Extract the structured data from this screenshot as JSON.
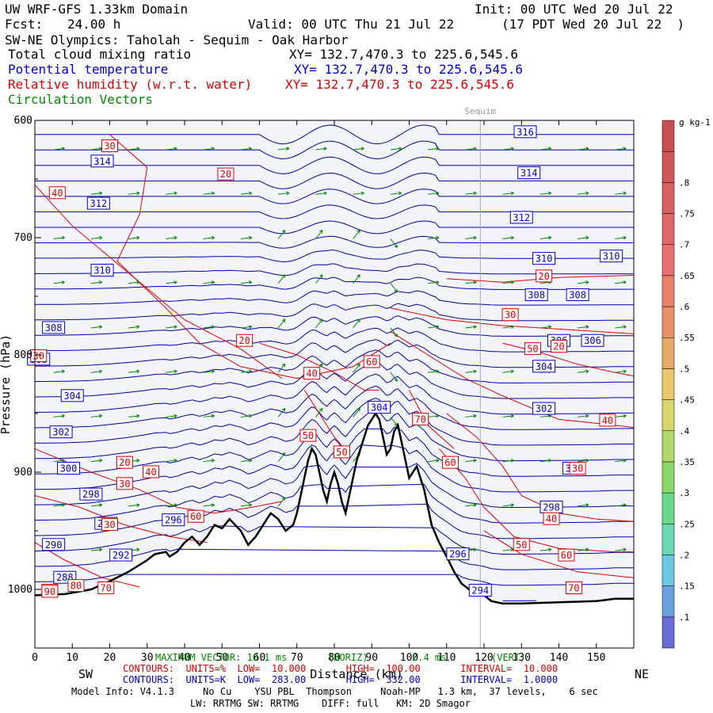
{
  "header": {
    "model_title": "UW WRF-GFS 1.33km Domain",
    "init": "Init: 00 UTC Wed 20 Jul 22",
    "fcst_label": "Fcst:",
    "fcst_value": "24.00 h",
    "valid": "Valid: 00 UTC Thu 21 Jul 22",
    "valid_local": "(17 PDT Wed 20 Jul 22  )",
    "cross_section": "SW-NE Olympics: Taholah - Sequim - Oak Harbor",
    "fields": [
      {
        "name": "Total cloud mixing ratio",
        "xy": "XY= 132.7,470.3 to 225.6,545.6",
        "color": "#000000"
      },
      {
        "name": "Potential temperature",
        "xy": "XY= 132.7,470.3 to 225.6,545.6",
        "color": "#0000cc"
      },
      {
        "name": "Relative humidity (w.r.t. water)",
        "xy": "XY= 132.7,470.3 to 225.6,545.6",
        "color": "#dd0000"
      },
      {
        "name": "Circulation Vectors",
        "xy": "",
        "color": "#008800"
      }
    ]
  },
  "chart_data": {
    "type": "cross-section",
    "xlabel": "Distance (km)",
    "ylabel": "Pressure (hPa)",
    "xlim": [
      0,
      160
    ],
    "ylim": [
      1050,
      600
    ],
    "x_ticks": [
      0,
      10,
      20,
      30,
      40,
      50,
      60,
      70,
      80,
      90,
      100,
      110,
      120,
      130,
      140,
      150
    ],
    "y_ticks": [
      600,
      700,
      800,
      900,
      1000
    ],
    "y_tick_labels": [
      "600",
      "700",
      "800",
      "900",
      "1000"
    ],
    "left_label": "SW",
    "right_label": "NE",
    "location_marker": {
      "name": "Sequim",
      "x": 119
    },
    "colorbar": {
      "units": "g kg-1",
      "levels": [
        0.05,
        0.1,
        0.15,
        0.2,
        0.25,
        0.3,
        0.35,
        0.4,
        0.45,
        0.5,
        0.55,
        0.6,
        0.65,
        0.7,
        0.75,
        0.8,
        0.85
      ],
      "tick_labels": [
        ".1",
        ".15",
        ".2",
        ".25",
        ".3",
        ".35",
        ".4",
        ".45",
        ".5",
        ".55",
        ".6",
        ".65",
        ".7",
        ".75",
        ".8"
      ]
    },
    "terrain": [
      [
        0,
        1005
      ],
      [
        8,
        1004
      ],
      [
        15,
        1000
      ],
      [
        20,
        993
      ],
      [
        25,
        985
      ],
      [
        30,
        975
      ],
      [
        32,
        970
      ],
      [
        35,
        968
      ],
      [
        36,
        972
      ],
      [
        38,
        968
      ],
      [
        40,
        960
      ],
      [
        42,
        955
      ],
      [
        44,
        962
      ],
      [
        46,
        955
      ],
      [
        48,
        945
      ],
      [
        50,
        948
      ],
      [
        52,
        940
      ],
      [
        55,
        950
      ],
      [
        57,
        962
      ],
      [
        59,
        955
      ],
      [
        61,
        945
      ],
      [
        63,
        935
      ],
      [
        65,
        940
      ],
      [
        67,
        950
      ],
      [
        69,
        945
      ],
      [
        70,
        935
      ],
      [
        71,
        920
      ],
      [
        72,
        905
      ],
      [
        73,
        890
      ],
      [
        74,
        880
      ],
      [
        75,
        885
      ],
      [
        76,
        900
      ],
      [
        77,
        915
      ],
      [
        78,
        925
      ],
      [
        79,
        910
      ],
      [
        80,
        900
      ],
      [
        81,
        910
      ],
      [
        82,
        925
      ],
      [
        83,
        935
      ],
      [
        84,
        920
      ],
      [
        85,
        905
      ],
      [
        86,
        890
      ],
      [
        87,
        880
      ],
      [
        88,
        870
      ],
      [
        89,
        860
      ],
      [
        90,
        855
      ],
      [
        91,
        850
      ],
      [
        92,
        855
      ],
      [
        93,
        870
      ],
      [
        94,
        885
      ],
      [
        95,
        880
      ],
      [
        96,
        865
      ],
      [
        97,
        860
      ],
      [
        98,
        875
      ],
      [
        99,
        890
      ],
      [
        100,
        905
      ],
      [
        101,
        900
      ],
      [
        102,
        895
      ],
      [
        103,
        905
      ],
      [
        104,
        915
      ],
      [
        105,
        930
      ],
      [
        106,
        945
      ],
      [
        108,
        960
      ],
      [
        110,
        972
      ],
      [
        112,
        985
      ],
      [
        114,
        995
      ],
      [
        116,
        1000
      ],
      [
        118,
        1002
      ],
      [
        120,
        1005
      ],
      [
        122,
        1010
      ],
      [
        125,
        1012
      ],
      [
        130,
        1012
      ],
      [
        140,
        1011
      ],
      [
        150,
        1010
      ],
      [
        155,
        1008
      ],
      [
        160,
        1008
      ]
    ],
    "theta_contours": {
      "units": "K",
      "low": "283.00",
      "high": "332.00",
      "interval": "1.0000",
      "labels": [
        {
          "text": "316",
          "x": 131,
          "p": 610
        },
        {
          "text": "314",
          "x": 18,
          "p": 635
        },
        {
          "text": "314",
          "x": 132,
          "p": 645
        },
        {
          "text": "312",
          "x": 17,
          "p": 671
        },
        {
          "text": "312",
          "x": 130,
          "p": 683
        },
        {
          "text": "310",
          "x": 18,
          "p": 728
        },
        {
          "text": "310",
          "x": 136,
          "p": 718
        },
        {
          "text": "310",
          "x": 154,
          "p": 716
        },
        {
          "text": "308",
          "x": 5,
          "p": 777
        },
        {
          "text": "308",
          "x": 134,
          "p": 749
        },
        {
          "text": "308",
          "x": 145,
          "p": 749
        },
        {
          "text": "306",
          "x": 1,
          "p": 804
        },
        {
          "text": "306",
          "x": 140,
          "p": 788
        },
        {
          "text": "306",
          "x": 149,
          "p": 788
        },
        {
          "text": "304",
          "x": 10,
          "p": 835
        },
        {
          "text": "304",
          "x": 136,
          "p": 810
        },
        {
          "text": "304",
          "x": 92,
          "p": 845
        },
        {
          "text": "302",
          "x": 7,
          "p": 866
        },
        {
          "text": "302",
          "x": 136,
          "p": 846
        },
        {
          "text": "300",
          "x": 9,
          "p": 897
        },
        {
          "text": "300",
          "x": 144,
          "p": 897
        },
        {
          "text": "298",
          "x": 15,
          "p": 919
        },
        {
          "text": "298",
          "x": 138,
          "p": 930
        },
        {
          "text": "296",
          "x": 37,
          "p": 941
        },
        {
          "text": "296",
          "x": 113,
          "p": 970
        },
        {
          "text": "294",
          "x": 19,
          "p": 944
        },
        {
          "text": "294",
          "x": 119,
          "p": 1001
        },
        {
          "text": "292",
          "x": 23,
          "p": 971
        },
        {
          "text": "290",
          "x": 5,
          "p": 962
        },
        {
          "text": "288",
          "x": 8,
          "p": 990
        }
      ]
    },
    "rh_contours": {
      "units": "%",
      "low": "10.000",
      "high": "100.00",
      "interval": "10.000",
      "labels": [
        {
          "text": "30",
          "x": 20,
          "p": 622
        },
        {
          "text": "20",
          "x": 51,
          "p": 646
        },
        {
          "text": "40",
          "x": 6,
          "p": 662
        },
        {
          "text": "20",
          "x": 136,
          "p": 733
        },
        {
          "text": "20",
          "x": 56,
          "p": 788
        },
        {
          "text": "30",
          "x": 127,
          "p": 766
        },
        {
          "text": "20",
          "x": 140,
          "p": 793
        },
        {
          "text": "50",
          "x": 133,
          "p": 795
        },
        {
          "text": "30",
          "x": 1,
          "p": 801
        },
        {
          "text": "40",
          "x": 74,
          "p": 816
        },
        {
          "text": "60",
          "x": 90,
          "p": 806
        },
        {
          "text": "70",
          "x": 103,
          "p": 855
        },
        {
          "text": "40",
          "x": 153,
          "p": 856
        },
        {
          "text": "50",
          "x": 73,
          "p": 869
        },
        {
          "text": "50",
          "x": 82,
          "p": 883
        },
        {
          "text": "60",
          "x": 111,
          "p": 892
        },
        {
          "text": "20",
          "x": 24,
          "p": 892
        },
        {
          "text": "40",
          "x": 31,
          "p": 900
        },
        {
          "text": "30",
          "x": 24,
          "p": 910
        },
        {
          "text": "30",
          "x": 145,
          "p": 897
        },
        {
          "text": "30",
          "x": 20,
          "p": 945
        },
        {
          "text": "40",
          "x": 138,
          "p": 940
        },
        {
          "text": "60",
          "x": 43,
          "p": 938
        },
        {
          "text": "50",
          "x": 130,
          "p": 962
        },
        {
          "text": "60",
          "x": 142,
          "p": 971
        },
        {
          "text": "70",
          "x": 144,
          "p": 999
        },
        {
          "text": "60",
          "x": 4,
          "p": 1001
        },
        {
          "text": "80",
          "x": 11,
          "p": 997
        },
        {
          "text": "70",
          "x": 19,
          "p": 999
        },
        {
          "text": "90",
          "x": 4,
          "p": 1002
        }
      ]
    },
    "max_vector": {
      "horiz": "10.1",
      "vert": "2.4"
    }
  },
  "footer": {
    "max_vector_line": "MAXIMUM VECTOR: 10.1 ms",
    "max_vector_horiz": "(HORIZ)",
    "max_vector_vert_val": "2.4 ms",
    "max_vector_vert": "(VERT)",
    "rh_line": "CONTOURS:  UNITS=%  LOW=  10.000       HIGH=  100.00       INTERVAL=  10.000",
    "theta_line": "CONTOURS:  UNITS=K  LOW=  283.00       HIGH=  332.00       INTERVAL=  1.0000",
    "model_info": "Model Info: V4.1.3     No Cu    YSU PBL  Thompson     Noah-MP   1.3 km,  37 levels,    6 sec",
    "physics": "LW: RRTMG SW: RRTMG    DIFF: full   KM: 2D Smagor"
  }
}
